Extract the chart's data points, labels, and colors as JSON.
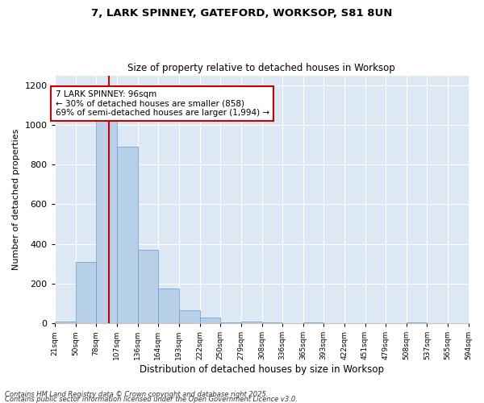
{
  "title_line1": "7, LARK SPINNEY, GATEFORD, WORKSOP, S81 8UN",
  "title_line2": "Size of property relative to detached houses in Worksop",
  "xlabel": "Distribution of detached houses by size in Worksop",
  "ylabel": "Number of detached properties",
  "bar_color": "#b8cfe8",
  "bar_edge_color": "#6699cc",
  "background_color": "#dde8f5",
  "grid_color": "#ffffff",
  "bin_edges": [
    21,
    50,
    78,
    107,
    136,
    164,
    193,
    222,
    250,
    279,
    308,
    336,
    365,
    393,
    422,
    451,
    479,
    508,
    537,
    565,
    594
  ],
  "bar_heights": [
    10,
    310,
    1050,
    890,
    370,
    175,
    65,
    30,
    5,
    10,
    3,
    0,
    5,
    0,
    0,
    0,
    0,
    3,
    0,
    0
  ],
  "property_size": 96,
  "red_line_color": "#cc0000",
  "annotation_line1": "7 LARK SPINNEY: 96sqm",
  "annotation_line2": "← 30% of detached houses are smaller (858)",
  "annotation_line3": "69% of semi-detached houses are larger (1,994) →",
  "annotation_box_color": "#ffffff",
  "annotation_box_edge_color": "#cc0000",
  "ylim": [
    0,
    1250
  ],
  "yticks": [
    0,
    200,
    400,
    600,
    800,
    1000,
    1200
  ],
  "footnote1": "Contains HM Land Registry data © Crown copyright and database right 2025.",
  "footnote2": "Contains public sector information licensed under the Open Government Licence v3.0.",
  "tick_labels": [
    "21sqm",
    "50sqm",
    "78sqm",
    "107sqm",
    "136sqm",
    "164sqm",
    "193sqm",
    "222sqm",
    "250sqm",
    "279sqm",
    "308sqm",
    "336sqm",
    "365sqm",
    "393sqm",
    "422sqm",
    "451sqm",
    "479sqm",
    "508sqm",
    "537sqm",
    "565sqm",
    "594sqm"
  ],
  "fig_width": 6.0,
  "fig_height": 5.0,
  "fig_dpi": 100
}
